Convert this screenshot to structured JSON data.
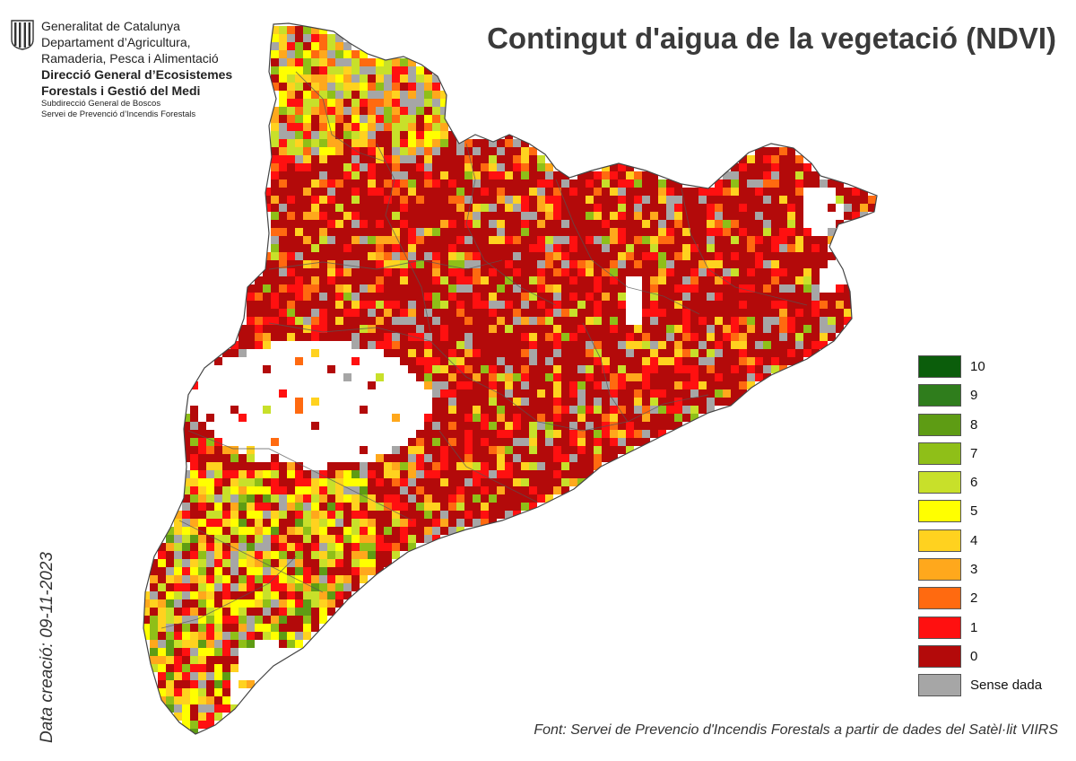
{
  "header": {
    "org_lines": [
      "Generalitat de Catalunya",
      "Departament d’Agricultura,",
      "Ramaderia, Pesca i Alimentació"
    ],
    "dept_lines": [
      "Direcció General d’Ecosistemes",
      "Forestals i Gestió del Medi"
    ],
    "sub_lines": [
      "Subdirecció General de Boscos",
      "Servei de Prevenció d’Incendis Forestals"
    ]
  },
  "title": "Contingut d'aigua de la vegetació (NDVI)",
  "creation_date": "Data creació: 09-11-2023",
  "source": "Font: Servei de Prevencio d'Incendis Forestals a partir de dades del Satèl·lit VIIRS",
  "legend": [
    {
      "label": "10",
      "color": "#0b5d0b"
    },
    {
      "label": "9",
      "color": "#2f7d1c"
    },
    {
      "label": "8",
      "color": "#5e9c14"
    },
    {
      "label": "7",
      "color": "#8fbf18"
    },
    {
      "label": "6",
      "color": "#c8e02a"
    },
    {
      "label": "5",
      "color": "#ffff00"
    },
    {
      "label": "4",
      "color": "#ffd21f"
    },
    {
      "label": "3",
      "color": "#ffa81c"
    },
    {
      "label": "2",
      "color": "#ff6a10"
    },
    {
      "label": "1",
      "color": "#ff1010"
    },
    {
      "label": "0",
      "color": "#b30a0a"
    },
    {
      "label": "Sense dada",
      "color": "#a6a6a6"
    }
  ]
}
